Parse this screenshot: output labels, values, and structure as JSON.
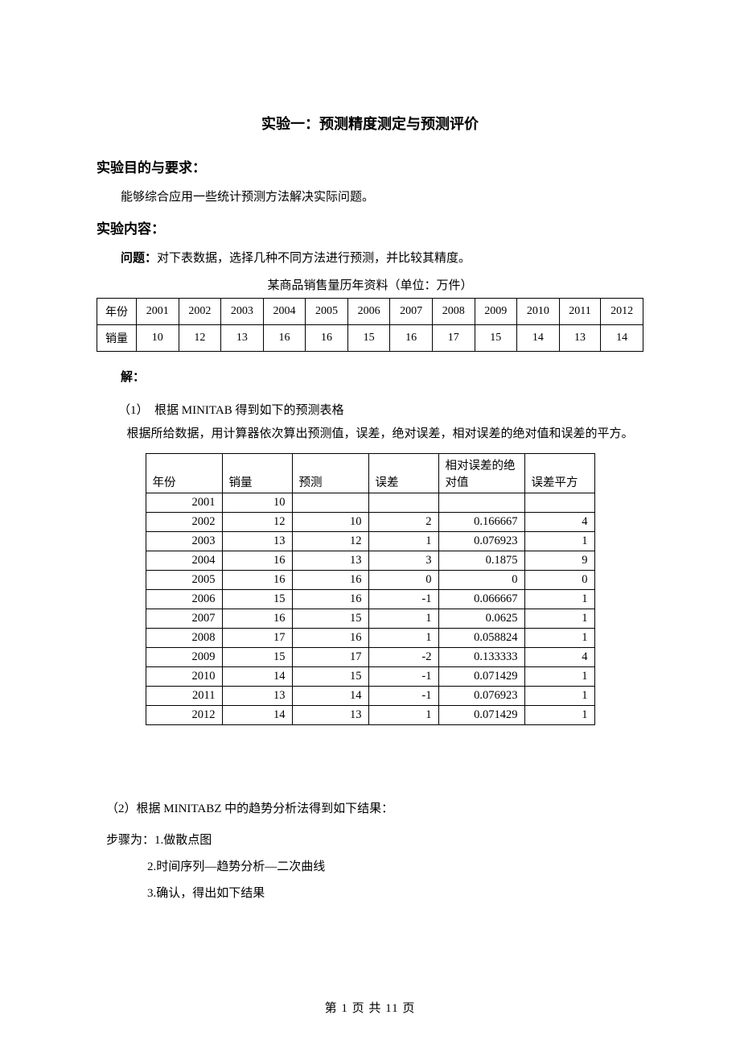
{
  "title": "实验一：预测精度测定与预测评价",
  "sections": {
    "purpose_heading": "实验目的与要求：",
    "purpose_text": "能够综合应用一些统计预测方法解决实际问题。",
    "content_heading": "实验内容：",
    "problem_label": "问题：",
    "problem_text": "对下表数据，选择几种不同方法进行预测，并比较其精度。",
    "table_caption": "某商品销售量历年资料（单位：万件）"
  },
  "year_table": {
    "row_labels": [
      "年份",
      "销量"
    ],
    "years": [
      "2001",
      "2002",
      "2003",
      "2004",
      "2005",
      "2006",
      "2007",
      "2008",
      "2009",
      "2010",
      "2011",
      "2012"
    ],
    "sales": [
      "10",
      "12",
      "13",
      "16",
      "16",
      "15",
      "16",
      "17",
      "15",
      "14",
      "13",
      "14"
    ]
  },
  "solution_label": "解：",
  "part1": {
    "num": "（1）",
    "line1": "根据 MINITAB 得到如下的预测表格",
    "line2": "根据所给数据，用计算器依次算出预测值，误差，绝对误差，相对误差的绝对值和误差的平方。"
  },
  "pred_table": {
    "headers": [
      "年份",
      "销量",
      "预测",
      "误差",
      "相对误差的绝对值",
      "误差平方"
    ],
    "rows": [
      [
        "2001",
        "10",
        "",
        "",
        "",
        ""
      ],
      [
        "2002",
        "12",
        "10",
        "2",
        "0.166667",
        "4"
      ],
      [
        "2003",
        "13",
        "12",
        "1",
        "0.076923",
        "1"
      ],
      [
        "2004",
        "16",
        "13",
        "3",
        "0.1875",
        "9"
      ],
      [
        "2005",
        "16",
        "16",
        "0",
        "0",
        "0"
      ],
      [
        "2006",
        "15",
        "16",
        "-1",
        "0.066667",
        "1"
      ],
      [
        "2007",
        "16",
        "15",
        "1",
        "0.0625",
        "1"
      ],
      [
        "2008",
        "17",
        "16",
        "1",
        "0.058824",
        "1"
      ],
      [
        "2009",
        "15",
        "17",
        "-2",
        "0.133333",
        "4"
      ],
      [
        "2010",
        "14",
        "15",
        "-1",
        "0.071429",
        "1"
      ],
      [
        "2011",
        "13",
        "14",
        "-1",
        "0.076923",
        "1"
      ],
      [
        "2012",
        "14",
        "13",
        "1",
        "0.071429",
        "1"
      ]
    ]
  },
  "part2": {
    "num": "（2）",
    "text": "根据 MINITABZ 中的趋势分析法得到如下结果：",
    "steps_label": "步骤为：",
    "steps": [
      "1.做散点图",
      "2.时间序列—趋势分析—二次曲线",
      "3.确认，得出如下结果"
    ]
  },
  "footer": {
    "prefix": "第",
    "current": "1",
    "mid": "页 共",
    "total": "11",
    "suffix": "页"
  }
}
